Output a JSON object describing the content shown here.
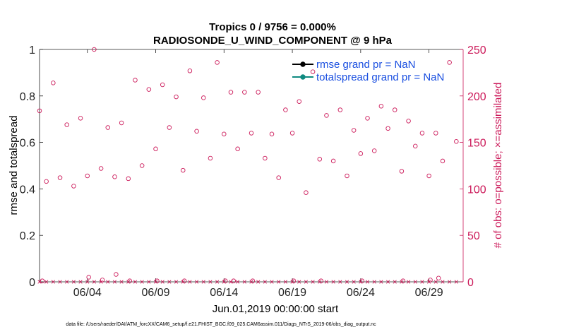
{
  "chart_data": {
    "type": "scatter",
    "title": "Tropics 0 / 9756 = 0.000%",
    "subtitle": "RADIOSONDE_U_WIND_COMPONENT @ 9 hPa",
    "xlabel": "Jun.01,2019 00:00:00 start",
    "ylabel_left": "rmse and totalspread",
    "ylabel_right": "# of obs: o=possible; ×=assimilated",
    "xlim": [
      0,
      31
    ],
    "ylim_left": [
      0,
      1
    ],
    "ylim_right": [
      0,
      250
    ],
    "x_ticks": [
      3.5,
      8.5,
      13.5,
      18.5,
      23.5,
      28.5
    ],
    "x_tick_labels": [
      "06/04",
      "06/09",
      "06/14",
      "06/19",
      "06/24",
      "06/29"
    ],
    "y_left_ticks": [
      0,
      0.2,
      0.4,
      0.6,
      0.8,
      1
    ],
    "y_left_tick_labels": [
      "0",
      "0.2",
      "0.4",
      "0.6",
      "0.8",
      "1"
    ],
    "y_right_ticks": [
      0,
      50,
      100,
      150,
      200,
      250
    ],
    "y_right_tick_labels": [
      "0",
      "50",
      "100",
      "150",
      "200",
      "250"
    ],
    "legend": [
      {
        "label": "rmse grand pr = NaN",
        "color": "#000000"
      },
      {
        "label": "totalspread grand pr = NaN",
        "color": "#0f8a80"
      }
    ],
    "legend_position": "top-right",
    "series": [
      {
        "name": "possible obs",
        "marker": "circle",
        "color": "#cc1a5a",
        "x": [
          0,
          0.5,
          1,
          1.5,
          2,
          2.5,
          3,
          3.5,
          4,
          4.5,
          5,
          5.5,
          6,
          6.5,
          7,
          7.5,
          8,
          8.5,
          9,
          9.5,
          10,
          10.5,
          11,
          11.5,
          12,
          12.5,
          13,
          13.5,
          14,
          14.5,
          15,
          15.5,
          16,
          16.5,
          17,
          17.5,
          18,
          18.5,
          19,
          19.5,
          20,
          20.5,
          21,
          21.5,
          22,
          22.5,
          23,
          23.5,
          24,
          24.5,
          25,
          25.5,
          26,
          26.5,
          27,
          27.5,
          28,
          28.5,
          29,
          29.5,
          30,
          30.5
        ],
        "y": [
          184,
          108,
          214,
          112,
          169,
          103,
          176,
          114,
          250,
          122,
          166,
          113,
          171,
          111,
          217,
          125,
          207,
          143,
          212,
          166,
          199,
          120,
          227,
          162,
          198,
          133,
          236,
          159,
          204,
          143,
          204,
          160,
          204,
          133,
          159,
          112,
          185,
          160,
          194,
          96,
          226,
          132,
          179,
          130,
          185,
          114,
          163,
          138,
          176,
          141,
          189,
          165,
          185,
          119,
          173,
          146,
          160,
          114,
          160,
          130,
          236,
          151
        ]
      },
      {
        "name": "assimilated obs",
        "marker": "cross",
        "color": "#cc1a5a",
        "x": [
          0,
          0.5,
          1,
          1.5,
          2,
          2.5,
          3,
          3.5,
          4,
          4.5,
          5,
          5.5,
          6,
          6.5,
          7,
          7.5,
          8,
          8.5,
          9,
          9.5,
          10,
          10.5,
          11,
          11.5,
          12,
          12.5,
          13,
          13.5,
          14,
          14.5,
          15,
          15.5,
          16,
          16.5,
          17,
          17.5,
          18,
          18.5,
          19,
          19.5,
          20,
          20.5,
          21,
          21.5,
          22,
          22.5,
          23,
          23.5,
          24,
          24.5,
          25,
          25.5,
          26,
          26.5,
          27,
          27.5,
          28,
          28.5,
          29,
          29.5,
          30,
          30.5
        ],
        "y": [
          0,
          0,
          0,
          0,
          0,
          0,
          0,
          0,
          0,
          0,
          0,
          0,
          0,
          0,
          0,
          0,
          0,
          0,
          0,
          0,
          0,
          0,
          0,
          0,
          0,
          0,
          0,
          0,
          0,
          0,
          0,
          0,
          0,
          0,
          0,
          0,
          0,
          0,
          0,
          0,
          0,
          0,
          0,
          0,
          0,
          0,
          0,
          0,
          0,
          0,
          0,
          0,
          0,
          0,
          0,
          0,
          0,
          0,
          0,
          0,
          0,
          0
        ]
      },
      {
        "name": "possible obs (low)",
        "marker": "circle",
        "color": "#cc1a5a",
        "x": [
          0.2,
          3.6,
          4.6,
          5.6,
          6.6,
          8.6,
          10.6,
          13.6,
          14.2,
          15.6,
          18.6,
          20.6,
          23.6,
          26.6,
          28.6,
          29.2
        ],
        "y": [
          1,
          5,
          2,
          8,
          1,
          1,
          1,
          1,
          1,
          1,
          1,
          1,
          1,
          1,
          2,
          4
        ]
      }
    ]
  },
  "footer": {
    "data_file": "data file: /Users/raeder/DAI/ATM_forcXX/CAM6_setup/f.e21.FHIST_BGC.f09_025.CAM6assim.011/Diags_NTrS_2019-06/obs_diag_output.nc"
  },
  "colors": {
    "right_axis": "#cc1a5a",
    "legend_text": "#1a4fe0"
  }
}
